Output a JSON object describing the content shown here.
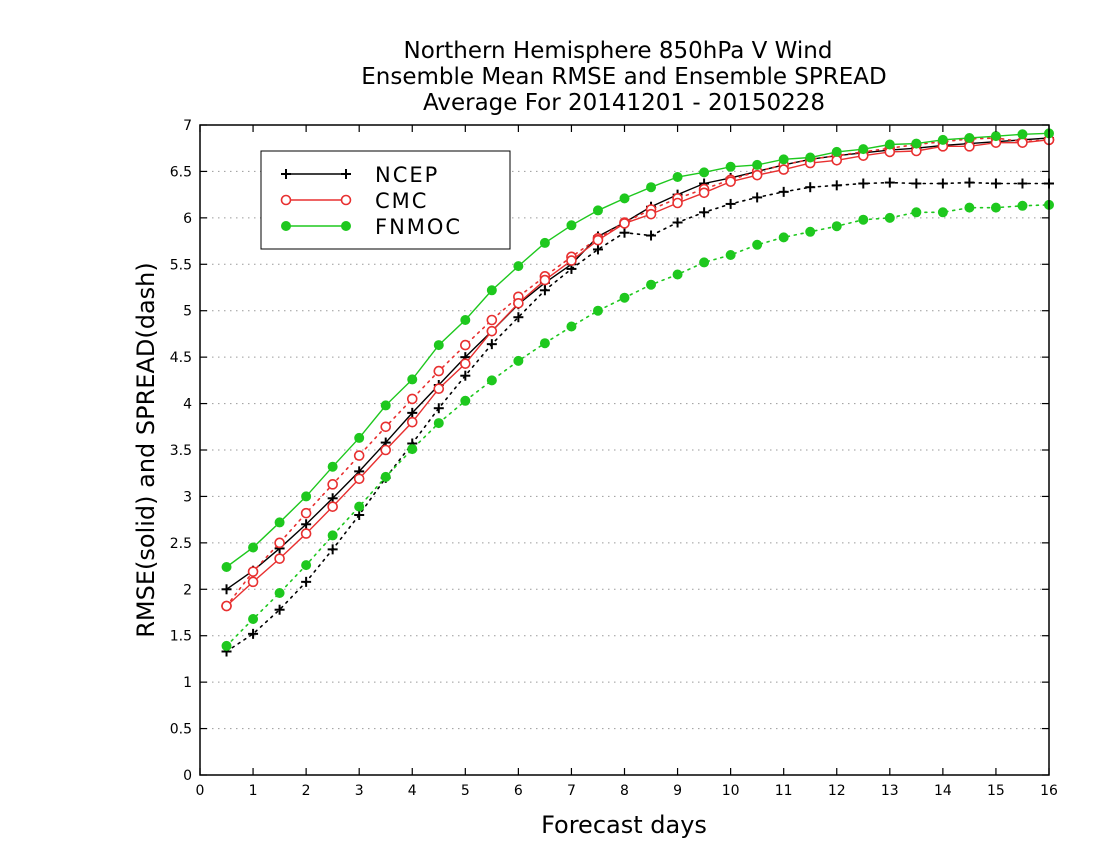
{
  "chart_data": {
    "type": "line",
    "title": [
      "Northern Hemisphere 850hPa V Wind",
      "Ensemble Mean RMSE and Ensemble SPREAD",
      "Average For 20141201 - 20150228"
    ],
    "xlabel": "Forecast days",
    "ylabel": "RMSE(solid) and SPREAD(dash)",
    "xlim": [
      0,
      16
    ],
    "ylim": [
      0,
      7
    ],
    "x_ticks": [
      "0",
      "1",
      "2",
      "3",
      "4",
      "5",
      "6",
      "7",
      "8",
      "9",
      "10",
      "11",
      "12",
      "13",
      "14",
      "15",
      "16"
    ],
    "y_ticks": [
      "0",
      "0.5",
      "1",
      "1.5",
      "2",
      "2.5",
      "3",
      "3.5",
      "4",
      "4.5",
      "5",
      "5.5",
      "6",
      "6.5",
      "7"
    ],
    "grid": "horizontal dotted",
    "legend_position": "top-left",
    "x": [
      0.5,
      1,
      1.5,
      2,
      2.5,
      3,
      3.5,
      4,
      4.5,
      5,
      5.5,
      6,
      6.5,
      7,
      7.5,
      8,
      8.5,
      9,
      9.5,
      10,
      10.5,
      11,
      11.5,
      12,
      12.5,
      13,
      13.5,
      14,
      14.5,
      15,
      15.5,
      16
    ],
    "series": [
      {
        "name": "NCEP",
        "color": "#000000",
        "marker": "plus",
        "rmse": [
          2.0,
          2.2,
          2.44,
          2.7,
          2.98,
          3.27,
          3.58,
          3.9,
          4.2,
          4.5,
          4.78,
          5.07,
          5.3,
          5.5,
          5.8,
          5.95,
          6.12,
          6.25,
          6.37,
          6.43,
          6.5,
          6.57,
          6.63,
          6.67,
          6.7,
          6.73,
          6.75,
          6.78,
          6.8,
          6.82,
          6.84,
          6.86
        ],
        "spread": [
          1.33,
          1.52,
          1.78,
          2.08,
          2.43,
          2.8,
          3.2,
          3.57,
          3.95,
          4.3,
          4.64,
          4.93,
          5.22,
          5.45,
          5.66,
          5.84,
          5.81,
          5.95,
          6.06,
          6.15,
          6.22,
          6.28,
          6.33,
          6.35,
          6.37,
          6.38,
          6.37,
          6.37,
          6.38,
          6.37,
          6.37,
          6.37
        ]
      },
      {
        "name": "CMC",
        "color": "#e83030",
        "marker": "open-circle",
        "rmse": [
          1.82,
          2.08,
          2.33,
          2.6,
          2.89,
          3.19,
          3.5,
          3.8,
          4.16,
          4.43,
          4.78,
          5.08,
          5.33,
          5.54,
          5.76,
          5.94,
          6.04,
          6.16,
          6.27,
          6.39,
          6.46,
          6.52,
          6.59,
          6.62,
          6.67,
          6.71,
          6.72,
          6.77,
          6.77,
          6.81,
          6.81,
          6.84
        ],
        "spread": [
          1.82,
          2.19,
          2.5,
          2.82,
          3.13,
          3.44,
          3.75,
          4.05,
          4.35,
          4.63,
          4.9,
          5.15,
          5.37,
          5.58,
          5.78,
          5.95,
          6.09,
          6.21,
          6.31,
          6.41,
          6.5,
          6.57,
          6.63,
          6.67,
          6.71,
          6.75,
          6.79,
          6.82,
          6.85,
          6.86,
          6.82,
          6.84
        ]
      },
      {
        "name": "FNMOC",
        "color": "#1ec81e",
        "marker": "filled-circle",
        "rmse": [
          2.24,
          2.45,
          2.72,
          3.0,
          3.32,
          3.63,
          3.98,
          4.26,
          4.63,
          4.9,
          5.22,
          5.48,
          5.73,
          5.92,
          6.08,
          6.21,
          6.33,
          6.44,
          6.49,
          6.55,
          6.57,
          6.63,
          6.65,
          6.71,
          6.74,
          6.79,
          6.8,
          6.84,
          6.86,
          6.88,
          6.9,
          6.91
        ],
        "spread": [
          1.39,
          1.68,
          1.96,
          2.26,
          2.58,
          2.89,
          3.21,
          3.51,
          3.79,
          4.03,
          4.25,
          4.46,
          4.65,
          4.83,
          5.0,
          5.14,
          5.28,
          5.39,
          5.52,
          5.6,
          5.71,
          5.79,
          5.85,
          5.91,
          5.98,
          6.0,
          6.06,
          6.06,
          6.11,
          6.11,
          6.13,
          6.14
        ]
      }
    ]
  }
}
